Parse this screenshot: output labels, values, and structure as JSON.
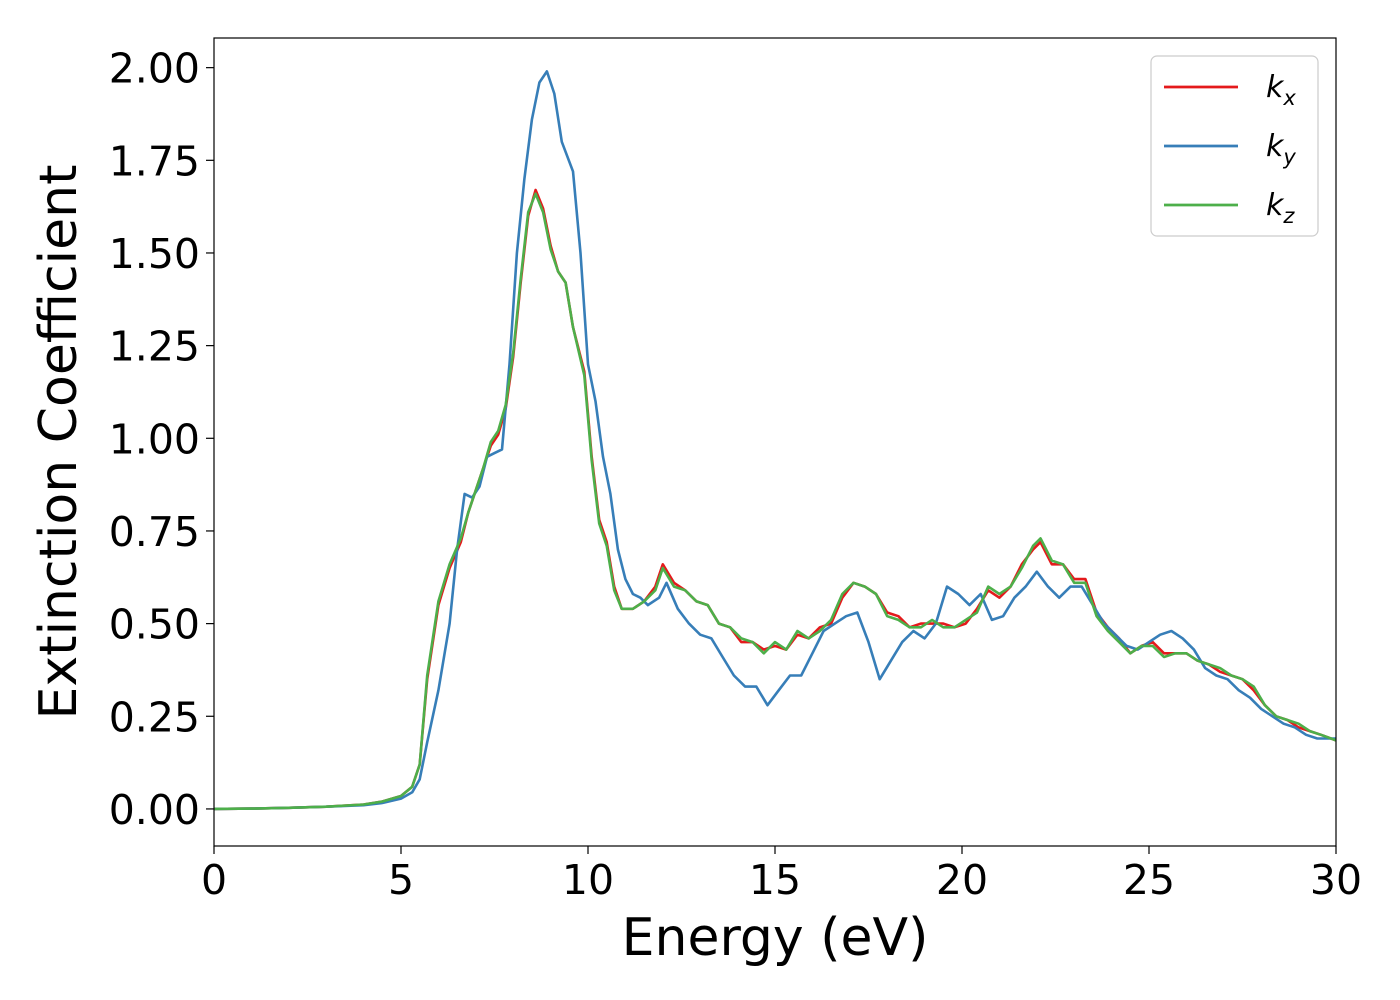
{
  "chart_data": {
    "type": "line",
    "title": "",
    "xlabel": "Energy (eV)",
    "ylabel": "Extinction Coefficient",
    "xlim": [
      0,
      30
    ],
    "ylim": [
      -0.1,
      2.08
    ],
    "xticks": [
      0,
      5,
      10,
      15,
      20,
      25,
      30
    ],
    "xtick_labels": [
      "0",
      "5",
      "10",
      "15",
      "20",
      "25",
      "30"
    ],
    "yticks": [
      0,
      0.25,
      0.5,
      0.75,
      1.0,
      1.25,
      1.5,
      1.75,
      2.0
    ],
    "ytick_labels": [
      "0.00",
      "0.25",
      "0.50",
      "0.75",
      "1.00",
      "1.25",
      "1.50",
      "1.75",
      "2.00"
    ],
    "grid": false,
    "legend_position": "top-right",
    "series": [
      {
        "name": "k",
        "subscript": "x",
        "color": "#e41a1c",
        "points": [
          [
            0,
            0
          ],
          [
            1,
            0.001
          ],
          [
            2,
            0.003
          ],
          [
            3,
            0.006
          ],
          [
            4,
            0.012
          ],
          [
            4.5,
            0.02
          ],
          [
            5,
            0.035
          ],
          [
            5.3,
            0.06
          ],
          [
            5.5,
            0.12
          ],
          [
            5.7,
            0.35
          ],
          [
            6,
            0.55
          ],
          [
            6.3,
            0.65
          ],
          [
            6.6,
            0.72
          ],
          [
            6.8,
            0.8
          ],
          [
            7,
            0.86
          ],
          [
            7.2,
            0.92
          ],
          [
            7.4,
            0.98
          ],
          [
            7.6,
            1.01
          ],
          [
            7.8,
            1.08
          ],
          [
            8,
            1.22
          ],
          [
            8.2,
            1.42
          ],
          [
            8.4,
            1.6
          ],
          [
            8.6,
            1.67
          ],
          [
            8.8,
            1.62
          ],
          [
            9,
            1.52
          ],
          [
            9.2,
            1.45
          ],
          [
            9.4,
            1.42
          ],
          [
            9.6,
            1.3
          ],
          [
            9.9,
            1.18
          ],
          [
            10.1,
            0.95
          ],
          [
            10.3,
            0.78
          ],
          [
            10.5,
            0.72
          ],
          [
            10.7,
            0.6
          ],
          [
            10.9,
            0.54
          ],
          [
            11.2,
            0.54
          ],
          [
            11.5,
            0.56
          ],
          [
            11.8,
            0.6
          ],
          [
            12,
            0.66
          ],
          [
            12.3,
            0.61
          ],
          [
            12.6,
            0.59
          ],
          [
            12.9,
            0.56
          ],
          [
            13.2,
            0.55
          ],
          [
            13.5,
            0.5
          ],
          [
            13.8,
            0.49
          ],
          [
            14.1,
            0.45
          ],
          [
            14.4,
            0.45
          ],
          [
            14.7,
            0.43
          ],
          [
            15,
            0.44
          ],
          [
            15.3,
            0.43
          ],
          [
            15.6,
            0.47
          ],
          [
            15.9,
            0.46
          ],
          [
            16.2,
            0.49
          ],
          [
            16.5,
            0.5
          ],
          [
            16.8,
            0.57
          ],
          [
            17.1,
            0.61
          ],
          [
            17.4,
            0.6
          ],
          [
            17.7,
            0.58
          ],
          [
            18,
            0.53
          ],
          [
            18.3,
            0.52
          ],
          [
            18.6,
            0.49
          ],
          [
            18.9,
            0.5
          ],
          [
            19.2,
            0.5
          ],
          [
            19.5,
            0.5
          ],
          [
            19.8,
            0.49
          ],
          [
            20.1,
            0.5
          ],
          [
            20.4,
            0.54
          ],
          [
            20.7,
            0.59
          ],
          [
            21,
            0.57
          ],
          [
            21.3,
            0.6
          ],
          [
            21.6,
            0.66
          ],
          [
            21.9,
            0.7
          ],
          [
            22.1,
            0.72
          ],
          [
            22.4,
            0.66
          ],
          [
            22.7,
            0.66
          ],
          [
            23,
            0.62
          ],
          [
            23.3,
            0.62
          ],
          [
            23.6,
            0.53
          ],
          [
            23.9,
            0.49
          ],
          [
            24.2,
            0.46
          ],
          [
            24.5,
            0.42
          ],
          [
            24.8,
            0.44
          ],
          [
            25.1,
            0.45
          ],
          [
            25.4,
            0.42
          ],
          [
            25.7,
            0.42
          ],
          [
            26,
            0.42
          ],
          [
            26.3,
            0.4
          ],
          [
            26.6,
            0.39
          ],
          [
            26.9,
            0.37
          ],
          [
            27.2,
            0.36
          ],
          [
            27.5,
            0.35
          ],
          [
            27.8,
            0.32
          ],
          [
            28.1,
            0.28
          ],
          [
            28.4,
            0.25
          ],
          [
            28.7,
            0.24
          ],
          [
            29,
            0.22
          ],
          [
            29.3,
            0.21
          ],
          [
            29.6,
            0.2
          ],
          [
            30,
            0.185
          ]
        ]
      },
      {
        "name": "k",
        "subscript": "y",
        "color": "#377eb8",
        "points": [
          [
            0,
            0
          ],
          [
            1,
            0.001
          ],
          [
            2,
            0.003
          ],
          [
            3,
            0.006
          ],
          [
            4,
            0.01
          ],
          [
            4.5,
            0.016
          ],
          [
            5,
            0.028
          ],
          [
            5.3,
            0.045
          ],
          [
            5.5,
            0.08
          ],
          [
            5.7,
            0.18
          ],
          [
            6,
            0.32
          ],
          [
            6.3,
            0.5
          ],
          [
            6.5,
            0.7
          ],
          [
            6.7,
            0.85
          ],
          [
            6.9,
            0.84
          ],
          [
            7.1,
            0.87
          ],
          [
            7.3,
            0.95
          ],
          [
            7.5,
            0.96
          ],
          [
            7.7,
            0.97
          ],
          [
            7.9,
            1.2
          ],
          [
            8.1,
            1.5
          ],
          [
            8.3,
            1.7
          ],
          [
            8.5,
            1.86
          ],
          [
            8.7,
            1.96
          ],
          [
            8.9,
            1.99
          ],
          [
            9.1,
            1.93
          ],
          [
            9.3,
            1.8
          ],
          [
            9.6,
            1.72
          ],
          [
            9.8,
            1.5
          ],
          [
            10,
            1.2
          ],
          [
            10.2,
            1.1
          ],
          [
            10.4,
            0.95
          ],
          [
            10.6,
            0.85
          ],
          [
            10.8,
            0.7
          ],
          [
            11,
            0.62
          ],
          [
            11.2,
            0.58
          ],
          [
            11.4,
            0.57
          ],
          [
            11.6,
            0.55
          ],
          [
            11.9,
            0.57
          ],
          [
            12.1,
            0.61
          ],
          [
            12.4,
            0.54
          ],
          [
            12.7,
            0.5
          ],
          [
            13,
            0.47
          ],
          [
            13.3,
            0.46
          ],
          [
            13.6,
            0.41
          ],
          [
            13.9,
            0.36
          ],
          [
            14.2,
            0.33
          ],
          [
            14.5,
            0.33
          ],
          [
            14.8,
            0.28
          ],
          [
            15.1,
            0.32
          ],
          [
            15.4,
            0.36
          ],
          [
            15.7,
            0.36
          ],
          [
            16,
            0.42
          ],
          [
            16.3,
            0.48
          ],
          [
            16.6,
            0.5
          ],
          [
            16.9,
            0.52
          ],
          [
            17.2,
            0.53
          ],
          [
            17.5,
            0.45
          ],
          [
            17.8,
            0.35
          ],
          [
            18.1,
            0.4
          ],
          [
            18.4,
            0.45
          ],
          [
            18.7,
            0.48
          ],
          [
            19,
            0.46
          ],
          [
            19.3,
            0.5
          ],
          [
            19.6,
            0.6
          ],
          [
            19.9,
            0.58
          ],
          [
            20.2,
            0.55
          ],
          [
            20.5,
            0.58
          ],
          [
            20.8,
            0.51
          ],
          [
            21.1,
            0.52
          ],
          [
            21.4,
            0.57
          ],
          [
            21.7,
            0.6
          ],
          [
            22,
            0.64
          ],
          [
            22.3,
            0.6
          ],
          [
            22.6,
            0.57
          ],
          [
            22.9,
            0.6
          ],
          [
            23.2,
            0.6
          ],
          [
            23.5,
            0.55
          ],
          [
            23.8,
            0.5
          ],
          [
            24.1,
            0.47
          ],
          [
            24.4,
            0.44
          ],
          [
            24.7,
            0.43
          ],
          [
            25,
            0.45
          ],
          [
            25.3,
            0.47
          ],
          [
            25.6,
            0.48
          ],
          [
            25.9,
            0.46
          ],
          [
            26.2,
            0.43
          ],
          [
            26.5,
            0.38
          ],
          [
            26.8,
            0.36
          ],
          [
            27.1,
            0.35
          ],
          [
            27.4,
            0.32
          ],
          [
            27.7,
            0.3
          ],
          [
            28,
            0.27
          ],
          [
            28.3,
            0.25
          ],
          [
            28.6,
            0.23
          ],
          [
            28.9,
            0.22
          ],
          [
            29.2,
            0.2
          ],
          [
            29.5,
            0.19
          ],
          [
            30,
            0.19
          ]
        ]
      },
      {
        "name": "k",
        "subscript": "z",
        "color": "#4daf4a",
        "points": [
          [
            0,
            0
          ],
          [
            1,
            0.001
          ],
          [
            2,
            0.003
          ],
          [
            3,
            0.006
          ],
          [
            4,
            0.012
          ],
          [
            4.5,
            0.02
          ],
          [
            5,
            0.035
          ],
          [
            5.3,
            0.06
          ],
          [
            5.5,
            0.12
          ],
          [
            5.7,
            0.36
          ],
          [
            6,
            0.56
          ],
          [
            6.3,
            0.66
          ],
          [
            6.6,
            0.73
          ],
          [
            6.8,
            0.8
          ],
          [
            7,
            0.86
          ],
          [
            7.2,
            0.92
          ],
          [
            7.4,
            0.99
          ],
          [
            7.6,
            1.02
          ],
          [
            7.8,
            1.09
          ],
          [
            8,
            1.23
          ],
          [
            8.2,
            1.43
          ],
          [
            8.4,
            1.61
          ],
          [
            8.6,
            1.66
          ],
          [
            8.8,
            1.61
          ],
          [
            9,
            1.51
          ],
          [
            9.2,
            1.45
          ],
          [
            9.4,
            1.42
          ],
          [
            9.6,
            1.3
          ],
          [
            9.9,
            1.17
          ],
          [
            10.1,
            0.94
          ],
          [
            10.3,
            0.77
          ],
          [
            10.5,
            0.71
          ],
          [
            10.7,
            0.59
          ],
          [
            10.9,
            0.54
          ],
          [
            11.2,
            0.54
          ],
          [
            11.5,
            0.56
          ],
          [
            11.8,
            0.59
          ],
          [
            12,
            0.65
          ],
          [
            12.3,
            0.6
          ],
          [
            12.6,
            0.59
          ],
          [
            12.9,
            0.56
          ],
          [
            13.2,
            0.55
          ],
          [
            13.5,
            0.5
          ],
          [
            13.8,
            0.49
          ],
          [
            14.1,
            0.46
          ],
          [
            14.4,
            0.45
          ],
          [
            14.7,
            0.42
          ],
          [
            15,
            0.45
          ],
          [
            15.3,
            0.43
          ],
          [
            15.6,
            0.48
          ],
          [
            15.9,
            0.46
          ],
          [
            16.2,
            0.48
          ],
          [
            16.5,
            0.51
          ],
          [
            16.8,
            0.58
          ],
          [
            17.1,
            0.61
          ],
          [
            17.4,
            0.6
          ],
          [
            17.7,
            0.58
          ],
          [
            18,
            0.52
          ],
          [
            18.3,
            0.51
          ],
          [
            18.6,
            0.49
          ],
          [
            18.9,
            0.49
          ],
          [
            19.2,
            0.51
          ],
          [
            19.5,
            0.49
          ],
          [
            19.8,
            0.49
          ],
          [
            20.1,
            0.51
          ],
          [
            20.4,
            0.53
          ],
          [
            20.7,
            0.6
          ],
          [
            21,
            0.58
          ],
          [
            21.3,
            0.6
          ],
          [
            21.6,
            0.65
          ],
          [
            21.9,
            0.71
          ],
          [
            22.1,
            0.73
          ],
          [
            22.4,
            0.67
          ],
          [
            22.7,
            0.66
          ],
          [
            23,
            0.61
          ],
          [
            23.3,
            0.61
          ],
          [
            23.6,
            0.52
          ],
          [
            23.9,
            0.48
          ],
          [
            24.2,
            0.45
          ],
          [
            24.5,
            0.42
          ],
          [
            24.8,
            0.44
          ],
          [
            25.1,
            0.44
          ],
          [
            25.4,
            0.41
          ],
          [
            25.7,
            0.42
          ],
          [
            26,
            0.42
          ],
          [
            26.3,
            0.4
          ],
          [
            26.6,
            0.39
          ],
          [
            26.9,
            0.38
          ],
          [
            27.2,
            0.36
          ],
          [
            27.5,
            0.35
          ],
          [
            27.8,
            0.33
          ],
          [
            28.1,
            0.28
          ],
          [
            28.4,
            0.25
          ],
          [
            28.7,
            0.24
          ],
          [
            29,
            0.23
          ],
          [
            29.3,
            0.21
          ],
          [
            29.6,
            0.2
          ],
          [
            30,
            0.185
          ]
        ]
      }
    ]
  }
}
